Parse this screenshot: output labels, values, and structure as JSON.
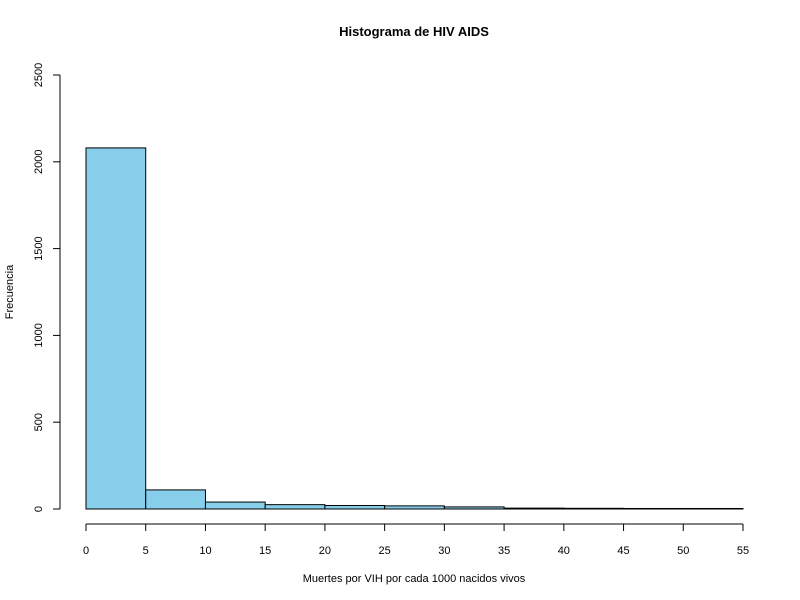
{
  "chart_data": {
    "type": "histogram",
    "title": "Histograma de HIV AIDS",
    "xlabel": "Muertes por VIH por cada 1000 nacidos vivos",
    "ylabel": "Frecuencia",
    "bin_edges": [
      0,
      5,
      10,
      15,
      20,
      25,
      30,
      35,
      40,
      45,
      50,
      55
    ],
    "counts": [
      2080,
      110,
      40,
      25,
      20,
      18,
      12,
      5,
      4,
      3,
      3
    ],
    "xlim": [
      0,
      55
    ],
    "ylim": [
      0,
      2500
    ],
    "x_ticks": [
      "0",
      "5",
      "10",
      "15",
      "20",
      "25",
      "30",
      "35",
      "40",
      "45",
      "50",
      "55"
    ],
    "y_ticks": [
      "0",
      "500",
      "1000",
      "1500",
      "2000",
      "2500"
    ],
    "bar_color": "#87CEEB",
    "grid": false
  }
}
